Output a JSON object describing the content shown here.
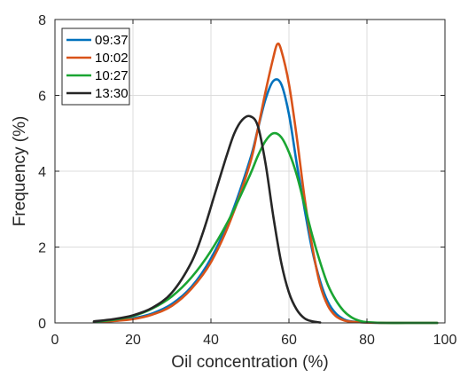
{
  "chart_data": {
    "type": "line",
    "title": "",
    "xlabel": "Oil concentration (%)",
    "ylabel": "Frequency (%)",
    "xlim": [
      0,
      100
    ],
    "ylim": [
      0,
      8
    ],
    "xticks": [
      "0",
      "20",
      "40",
      "60",
      "80",
      "100"
    ],
    "yticks": [
      "0",
      "2",
      "4",
      "6",
      "8"
    ],
    "grid": true,
    "legend_position": "top-left",
    "series": [
      {
        "name": "09:37",
        "color": "#0072BD",
        "x": [
          10,
          15,
          20,
          25,
          30,
          35,
          40,
          45,
          50,
          52,
          54,
          56,
          58,
          60,
          62,
          64,
          66,
          68,
          70,
          72,
          74,
          76,
          80,
          85,
          90,
          98
        ],
        "y": [
          0.02,
          0.05,
          0.12,
          0.25,
          0.5,
          0.95,
          1.7,
          2.8,
          4.3,
          5.1,
          5.9,
          6.38,
          6.3,
          5.5,
          4.2,
          3.0,
          1.9,
          1.1,
          0.55,
          0.25,
          0.1,
          0.04,
          0.01,
          0.0,
          0.0,
          0.0
        ]
      },
      {
        "name": "10:02",
        "color": "#D95319",
        "x": [
          10,
          15,
          20,
          25,
          30,
          35,
          40,
          45,
          50,
          52,
          54,
          56,
          57,
          58,
          60,
          62,
          64,
          66,
          68,
          70,
          72,
          74,
          76,
          80,
          85,
          90,
          98
        ],
        "y": [
          0.02,
          0.05,
          0.1,
          0.22,
          0.45,
          0.9,
          1.6,
          2.7,
          4.2,
          5.1,
          6.1,
          7.0,
          7.35,
          7.2,
          6.3,
          4.9,
          3.3,
          2.0,
          1.0,
          0.45,
          0.18,
          0.07,
          0.03,
          0.01,
          0.0,
          0.0,
          0.0
        ]
      },
      {
        "name": "10:27",
        "color": "#1AA532",
        "x": [
          10,
          15,
          20,
          25,
          30,
          35,
          40,
          45,
          50,
          52,
          54,
          56,
          58,
          60,
          62,
          64,
          66,
          68,
          70,
          72,
          74,
          76,
          78,
          80,
          85,
          90,
          98
        ],
        "y": [
          0.03,
          0.08,
          0.18,
          0.38,
          0.7,
          1.2,
          1.9,
          2.8,
          3.9,
          4.4,
          4.8,
          5.0,
          4.9,
          4.5,
          3.9,
          3.1,
          2.3,
          1.6,
          1.0,
          0.6,
          0.32,
          0.15,
          0.06,
          0.02,
          0.0,
          0.0,
          0.0
        ]
      },
      {
        "name": "13:30",
        "color": "#262626",
        "x": [
          10,
          15,
          20,
          25,
          30,
          35,
          38,
          41,
          44,
          46,
          48,
          50,
          52,
          54,
          56,
          58,
          60,
          62,
          64,
          66,
          68
        ],
        "y": [
          0.04,
          0.1,
          0.2,
          0.4,
          0.8,
          1.6,
          2.4,
          3.4,
          4.4,
          5.0,
          5.35,
          5.45,
          5.2,
          4.2,
          2.8,
          1.6,
          0.8,
          0.35,
          0.12,
          0.04,
          0.01
        ]
      }
    ]
  }
}
